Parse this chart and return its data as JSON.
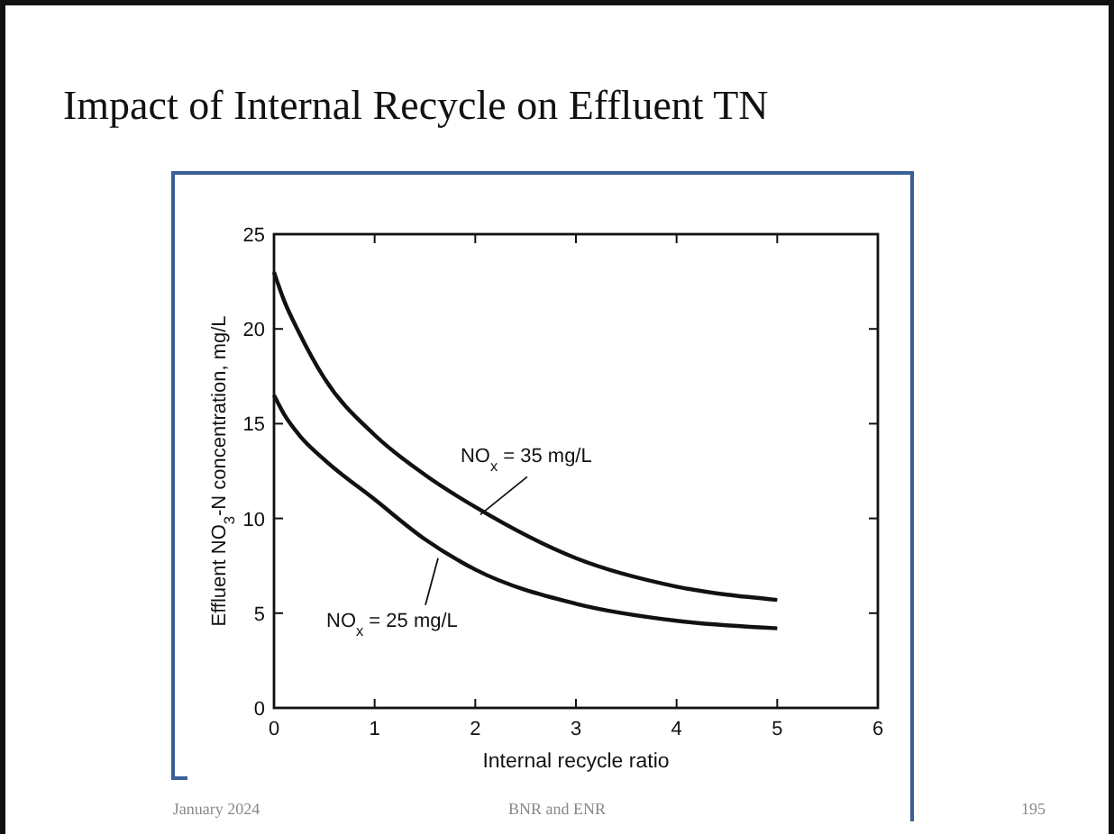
{
  "chart_data": {
    "type": "line",
    "title": "Impact of Internal Recycle on Effluent TN",
    "xlabel": "Internal recycle ratio",
    "ylabel": "Effluent NO$_{3}$-N concentration, mg/L",
    "x": [
      0,
      0.1,
      0.25,
      0.5,
      1,
      1.5,
      2,
      3,
      4,
      5
    ],
    "series": [
      {
        "color": "#111111",
        "values": [
          23,
          21.5,
          19.8,
          17.4,
          14.4,
          12.3,
          10.6,
          7.9,
          6.4,
          5.7
        ]
      },
      {
        "color": "#111111",
        "values": [
          16.5,
          15.5,
          14.4,
          13.1,
          11,
          8.9,
          7.3,
          5.5,
          4.6,
          4.2
        ]
      }
    ],
    "xlim": [
      0,
      6
    ],
    "ylim": [
      0,
      25
    ],
    "xticks": [
      0,
      1,
      2,
      3,
      4,
      5,
      6
    ],
    "yticks": [
      0,
      5,
      10,
      15,
      20,
      25
    ],
    "grid": false,
    "marker": "none",
    "line_style": "solid",
    "annotations": [
      {
        "text": "NO$_{x}$ = 35 mg/L",
        "x": 2.05,
        "y": 10.2
      },
      {
        "text": "NO$_{x}$ = 25 mg/L",
        "x": 1.63,
        "y": 7.9
      },
      "January 2024",
      "BNR and ENR",
      "195"
    ]
  }
}
